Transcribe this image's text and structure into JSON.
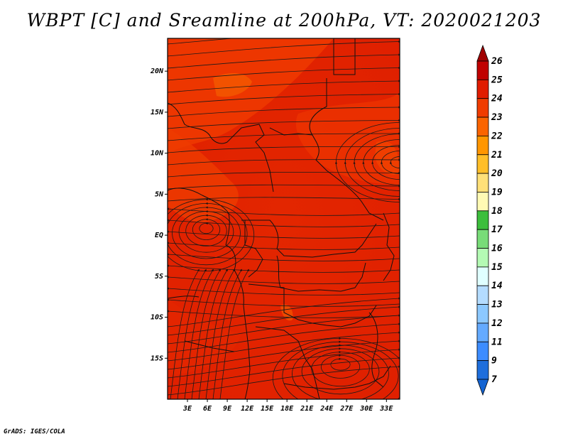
{
  "title": "WBPT [C] and Sreamline at 200hPa, VT: 2020021203",
  "footer": "GrADS: IGES/COLA",
  "map": {
    "lon_range": [
      0,
      35
    ],
    "lat_range": [
      -20,
      24
    ],
    "x_ticks": [
      {
        "value": 3,
        "label": "3E"
      },
      {
        "value": 6,
        "label": "6E"
      },
      {
        "value": 9,
        "label": "9E"
      },
      {
        "value": 12,
        "label": "12E"
      },
      {
        "value": 15,
        "label": "15E"
      },
      {
        "value": 18,
        "label": "18E"
      },
      {
        "value": 21,
        "label": "21E"
      },
      {
        "value": 24,
        "label": "24E"
      },
      {
        "value": 27,
        "label": "27E"
      },
      {
        "value": 30,
        "label": "30E"
      },
      {
        "value": 33,
        "label": "33E"
      }
    ],
    "y_ticks": [
      {
        "value": 20,
        "label": "20N"
      },
      {
        "value": 15,
        "label": "15N"
      },
      {
        "value": 10,
        "label": "10N"
      },
      {
        "value": 5,
        "label": "5N"
      },
      {
        "value": 0,
        "label": "EQ"
      },
      {
        "value": -5,
        "label": "5S"
      },
      {
        "value": -10,
        "label": "10S"
      },
      {
        "value": -15,
        "label": "15S"
      }
    ]
  },
  "colorbar": {
    "levels": [
      {
        "label": "26",
        "color": "#a00000"
      },
      {
        "label": "25",
        "color": "#c00000"
      },
      {
        "label": "24",
        "color": "#e01c00"
      },
      {
        "label": "23",
        "color": "#f03c00"
      },
      {
        "label": "22",
        "color": "#fa6400"
      },
      {
        "label": "21",
        "color": "#ff9600"
      },
      {
        "label": "20",
        "color": "#ffbe28"
      },
      {
        "label": "19",
        "color": "#ffe078"
      },
      {
        "label": "18",
        "color": "#fffab4"
      },
      {
        "label": "17",
        "color": "#3cbe3c"
      },
      {
        "label": "16",
        "color": "#78dc78"
      },
      {
        "label": "15",
        "color": "#b4fab4"
      },
      {
        "label": "14",
        "color": "#e0ffff"
      },
      {
        "label": "13",
        "color": "#b4dcff"
      },
      {
        "label": "12",
        "color": "#8cc8ff"
      },
      {
        "label": "11",
        "color": "#64aaff"
      },
      {
        "label": "9",
        "color": "#3c8cff"
      },
      {
        "label": "7",
        "color": "#1e6edc"
      }
    ],
    "bottom_color": "#1464d2"
  }
}
